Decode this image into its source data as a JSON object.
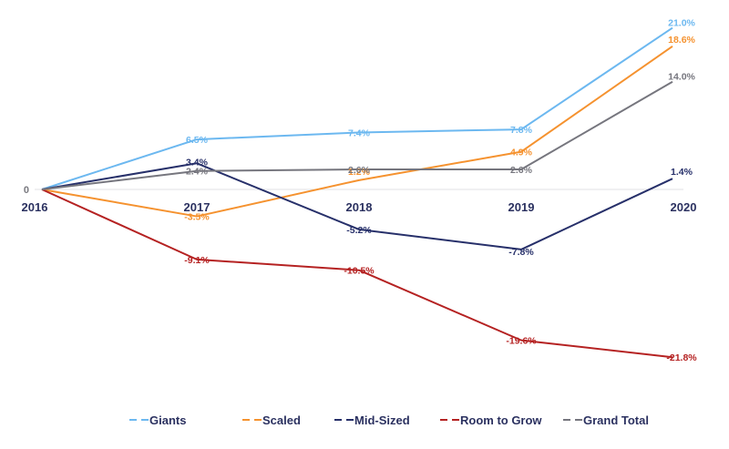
{
  "chart_data": {
    "type": "line",
    "title": "",
    "xlabel": "",
    "ylabel": "",
    "categories": [
      "2016",
      "2017",
      "2018",
      "2019",
      "2020"
    ],
    "zero_label": "0",
    "ylim": [
      -25,
      22
    ],
    "grid": false,
    "baseline_at_zero": true,
    "legend_position": "bottom",
    "series": [
      {
        "name": "Giants",
        "color": "#6cb8f0",
        "values": [
          0,
          6.5,
          7.4,
          7.8,
          21.0
        ],
        "labels": [
          "",
          "6.5%",
          "7.4%",
          "7.8%",
          "21.0%"
        ]
      },
      {
        "name": "Scaled",
        "color": "#f5922f",
        "values": [
          0,
          -3.5,
          1.2,
          4.9,
          18.6
        ],
        "labels": [
          "",
          "-3.5%",
          "1.2%",
          "4.9%",
          "18.6%"
        ]
      },
      {
        "name": "Mid-Sized",
        "color": "#27306a",
        "values": [
          0,
          3.4,
          -5.2,
          -7.8,
          1.4
        ],
        "labels": [
          "",
          "3.4%",
          "-5.2%",
          "-7.8%",
          "1.4%"
        ]
      },
      {
        "name": "Room to Grow",
        "color": "#b52222",
        "values": [
          0,
          -9.1,
          -10.5,
          -19.6,
          -21.8
        ],
        "labels": [
          "",
          "-9.1%",
          "-10.5%",
          "-19.6%",
          "-21.8%"
        ]
      },
      {
        "name": "Grand Total",
        "color": "#76767e",
        "values": [
          0,
          2.4,
          2.6,
          2.6,
          14.0
        ],
        "labels": [
          "",
          "2.4%",
          "2.6%",
          "2.6%",
          "14.0%"
        ]
      }
    ]
  }
}
